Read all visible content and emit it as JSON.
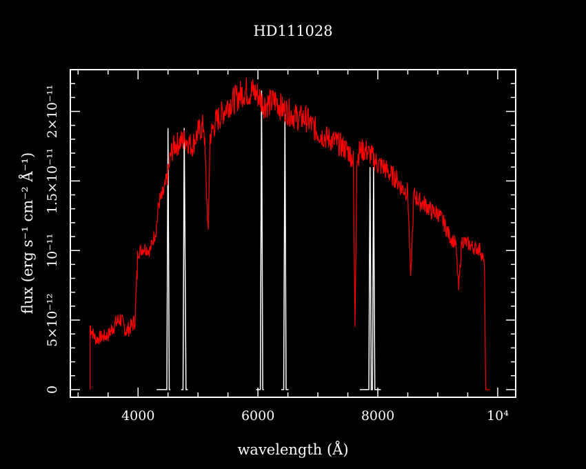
{
  "chart_data": {
    "type": "line",
    "title": "HD111028",
    "xlabel": "wavelength (Å)",
    "ylabel": "flux (erg s⁻¹ cm⁻² Å⁻¹)",
    "xlim": [
      2870,
      10300
    ],
    "ylim": [
      -5.5e-13,
      2.3e-11
    ],
    "x_ticks": [
      {
        "value": 4000,
        "label": "4000"
      },
      {
        "value": 6000,
        "label": "6000"
      },
      {
        "value": 8000,
        "label": "8000"
      },
      {
        "value": 10000,
        "label": "10⁴"
      }
    ],
    "y_ticks": [
      {
        "value": 0,
        "label": "0"
      },
      {
        "value": 5e-12,
        "label": "5×10⁻¹²"
      },
      {
        "value": 1e-11,
        "label": "10⁻¹¹"
      },
      {
        "value": 1.5e-11,
        "label": "1.5×10⁻¹¹"
      },
      {
        "value": 2e-11,
        "label": "2×10⁻¹¹"
      }
    ],
    "grid": false,
    "colors": {
      "spectrum": "#ff0000",
      "filters": "#ffffff",
      "axes": "#ffffff",
      "background": "#000000"
    },
    "series": [
      {
        "x": [
          3200,
          3250,
          3300,
          3400,
          3500,
          3600,
          3700,
          3800,
          3900,
          3950,
          4000,
          4100,
          4200,
          4300,
          4350,
          4400,
          4450,
          4500,
          4550,
          4600,
          4700,
          4800,
          4900,
          5000,
          5100,
          5170,
          5200,
          5300,
          5400,
          5500,
          5600,
          5700,
          5800,
          5850,
          5900,
          6000,
          6100,
          6200,
          6300,
          6400,
          6500,
          6600,
          6700,
          6800,
          6900,
          7000,
          7100,
          7200,
          7300,
          7400,
          7500,
          7590,
          7620,
          7650,
          7700,
          7800,
          7900,
          8000,
          8100,
          8200,
          8300,
          8400,
          8500,
          8550,
          8600,
          8700,
          8800,
          8900,
          9000,
          9100,
          9200,
          9300,
          9350,
          9400,
          9500,
          9600,
          9700,
          9750,
          9780,
          9800
        ],
        "y": [
          4.6e-12,
          4e-12,
          3.6e-12,
          3.8e-12,
          3.9e-12,
          4.6e-12,
          5.1e-12,
          4.2e-12,
          4.6e-12,
          5e-12,
          9.9e-12,
          1.02e-11,
          1e-11,
          1.15e-11,
          1.35e-11,
          1.38e-11,
          1.45e-11,
          1.55e-11,
          1.7e-11,
          1.75e-11,
          1.78e-11,
          1.8e-11,
          1.75e-11,
          1.85e-11,
          1.9e-11,
          1.1e-11,
          1.82e-11,
          1.93e-11,
          1.98e-11,
          2.05e-11,
          2.08e-11,
          2.12e-11,
          2.15e-11,
          2.13e-11,
          2.15e-11,
          2.12e-11,
          2.05e-11,
          2.06e-11,
          2.08e-11,
          2.02e-11,
          2e-11,
          1.97e-11,
          1.95e-11,
          1.95e-11,
          1.9e-11,
          1.85e-11,
          1.82e-11,
          1.8e-11,
          1.78e-11,
          1.75e-11,
          1.72e-11,
          1.65e-11,
          4.6e-12,
          1.65e-11,
          1.72e-11,
          1.72e-11,
          1.68e-11,
          1.62e-11,
          1.6e-11,
          1.55e-11,
          1.52e-11,
          1.45e-11,
          1.42e-11,
          7.8e-12,
          1.4e-11,
          1.35e-11,
          1.33e-11,
          1.28e-11,
          1.27e-11,
          1.2e-11,
          1.1e-11,
          1.05e-11,
          7.2e-12,
          1.07e-11,
          1.05e-11,
          1.02e-11,
          1.01e-11,
          9.5e-12,
          8.8e-12,
          0
        ]
      }
    ],
    "filter_curves": [
      {
        "x": [
          4310,
          4480,
          4500,
          4520,
          4540
        ],
        "y": [
          0,
          0,
          1.88e-11,
          0,
          0
        ]
      },
      {
        "x": [
          4720,
          4750,
          4770,
          4800,
          4830
        ],
        "y": [
          0,
          0,
          1.88e-11,
          0,
          0
        ]
      },
      {
        "x": [
          5970,
          6040,
          6060,
          6080,
          6100
        ],
        "y": [
          0,
          0,
          2.15e-11,
          0,
          0
        ]
      },
      {
        "x": [
          6390,
          6430,
          6450,
          6470,
          6510
        ],
        "y": [
          0,
          0,
          1.98e-11,
          0,
          0
        ]
      },
      {
        "x": [
          7700,
          7850,
          7870,
          7890,
          7910
        ],
        "y": [
          0,
          0,
          1.6e-11,
          0,
          0
        ]
      },
      {
        "x": [
          7880,
          7910,
          7930,
          7950,
          8050
        ],
        "y": [
          0,
          0,
          1.6e-11,
          0,
          0
        ]
      }
    ]
  }
}
